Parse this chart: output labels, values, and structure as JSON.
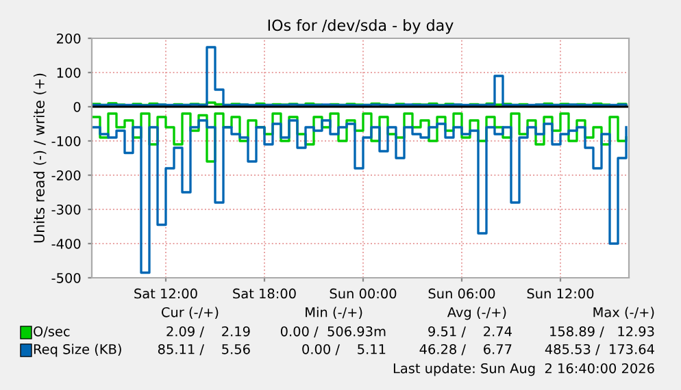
{
  "chart_data": {
    "type": "step",
    "title": "IOs for /dev/sda - by day",
    "ylabel": "Units read (-) / write (+)",
    "x": [
      "2026-08-01T07:30",
      "2026-08-01T08:00",
      "2026-08-01T08:30",
      "2026-08-01T09:00",
      "2026-08-01T09:30",
      "2026-08-01T10:00",
      "2026-08-01T10:30",
      "2026-08-01T11:00",
      "2026-08-01T11:30",
      "2026-08-01T12:00",
      "2026-08-01T12:30",
      "2026-08-01T13:00",
      "2026-08-01T13:30",
      "2026-08-01T14:00",
      "2026-08-01T14:30",
      "2026-08-01T15:00",
      "2026-08-01T15:30",
      "2026-08-01T16:00",
      "2026-08-01T16:30",
      "2026-08-01T17:00",
      "2026-08-01T17:30",
      "2026-08-01T18:00",
      "2026-08-01T18:30",
      "2026-08-01T19:00",
      "2026-08-01T19:30",
      "2026-08-01T20:00",
      "2026-08-01T20:30",
      "2026-08-01T21:00",
      "2026-08-01T21:30",
      "2026-08-01T22:00",
      "2026-08-01T22:30",
      "2026-08-01T23:00",
      "2026-08-01T23:30",
      "2026-08-02T00:00",
      "2026-08-02T00:30",
      "2026-08-02T01:00",
      "2026-08-02T01:30",
      "2026-08-02T02:00",
      "2026-08-02T02:30",
      "2026-08-02T03:00",
      "2026-08-02T03:30",
      "2026-08-02T04:00",
      "2026-08-02T04:30",
      "2026-08-02T05:00",
      "2026-08-02T05:30",
      "2026-08-02T06:00",
      "2026-08-02T06:30",
      "2026-08-02T07:00",
      "2026-08-02T07:30",
      "2026-08-02T08:00",
      "2026-08-02T08:30",
      "2026-08-02T09:00",
      "2026-08-02T09:30",
      "2026-08-02T10:00",
      "2026-08-02T10:30",
      "2026-08-02T11:00",
      "2026-08-02T11:30",
      "2026-08-02T12:00",
      "2026-08-02T12:30",
      "2026-08-02T13:00",
      "2026-08-02T13:30",
      "2026-08-02T14:00",
      "2026-08-02T14:30",
      "2026-08-02T15:00",
      "2026-08-02T15:30",
      "2026-08-02T16:00"
    ],
    "series": [
      {
        "color": "#00cc00",
        "values": [
          -30,
          -90,
          -20,
          -60,
          -40,
          -90,
          -20,
          -110,
          -30,
          -60,
          -110,
          -20,
          -70,
          -25,
          -160,
          -20,
          -60,
          -30,
          -100,
          -40,
          -60,
          -80,
          -20,
          -100,
          -30,
          -80,
          -110,
          -30,
          -60,
          -20,
          -100,
          -40,
          -70,
          -20,
          -100,
          -30,
          -80,
          -90,
          -20,
          -60,
          -40,
          -100,
          -30,
          -70,
          -20,
          -90,
          -40,
          -100,
          -30,
          -60,
          -90,
          -20,
          -80,
          -40,
          -110,
          -30,
          -70,
          -20,
          -100,
          -40,
          -90,
          -60,
          -110,
          -30,
          -100,
          -90
        ]
      },
      {
        "name": "O/sec",
        "color": "#00cc00",
        "values": [
          8,
          5,
          10,
          6,
          4,
          8,
          5,
          9,
          6,
          4,
          7,
          5,
          8,
          6,
          12,
          7,
          5,
          8,
          6,
          4,
          9,
          5,
          7,
          6,
          8,
          5,
          9,
          6,
          4,
          7,
          5,
          8,
          6,
          5,
          9,
          6,
          4,
          8,
          5,
          7,
          6,
          9,
          5,
          8,
          6,
          4,
          7,
          5,
          9,
          6,
          8,
          5,
          7,
          4,
          6,
          9,
          5,
          8,
          6,
          7,
          5,
          9,
          6,
          4,
          8,
          5
        ]
      },
      {
        "color": "#0066b3",
        "values": [
          -60,
          -80,
          -90,
          -70,
          -135,
          -60,
          -485,
          -60,
          -345,
          -180,
          -120,
          -250,
          -60,
          -40,
          -60,
          -280,
          -60,
          -80,
          -90,
          -160,
          -60,
          -110,
          -50,
          -90,
          -40,
          -120,
          -60,
          -70,
          -40,
          -80,
          -60,
          -50,
          -180,
          -90,
          -60,
          -130,
          -60,
          -150,
          -60,
          -80,
          -90,
          -60,
          -50,
          -90,
          -60,
          -80,
          -70,
          -370,
          -60,
          -80,
          -60,
          -280,
          -90,
          -60,
          -80,
          -50,
          -110,
          -80,
          -70,
          -60,
          -120,
          -180,
          -80,
          -400,
          -150,
          -60
        ]
      },
      {
        "name": "Req Size (KB)",
        "color": "#0066b3",
        "values": [
          5,
          5,
          6,
          5,
          5,
          5,
          4,
          5,
          6,
          5,
          5,
          5,
          6,
          5,
          174,
          50,
          5,
          5,
          6,
          5,
          5,
          5,
          4,
          5,
          6,
          5,
          5,
          5,
          6,
          5,
          5,
          5,
          4,
          5,
          6,
          5,
          5,
          5,
          6,
          5,
          5,
          5,
          4,
          5,
          6,
          5,
          5,
          5,
          6,
          90,
          5,
          5,
          4,
          5,
          6,
          5,
          5,
          5,
          6,
          5,
          5,
          5,
          4,
          5,
          6,
          5
        ]
      }
    ],
    "xlim": [
      "2026-08-01T07:30",
      "2026-08-02T16:10"
    ],
    "xticks": [
      {
        "value": "2026-08-01T12:00",
        "label": "Sat 12:00"
      },
      {
        "value": "2026-08-01T18:00",
        "label": "Sat 18:00"
      },
      {
        "value": "2026-08-02T00:00",
        "label": "Sun 00:00"
      },
      {
        "value": "2026-08-02T06:00",
        "label": "Sun 06:00"
      },
      {
        "value": "2026-08-02T12:00",
        "label": "Sun 12:00"
      }
    ],
    "ylim": [
      -500,
      200
    ],
    "yticks": [
      -500,
      -400,
      -300,
      -200,
      -100,
      0,
      100,
      200
    ],
    "ref_lines": [
      {
        "axis": "y",
        "value": 0,
        "color": "#000000"
      }
    ],
    "grid": true,
    "legend": "bottom",
    "annotations": [
      "Cur (-/+)",
      "Min (-/+)",
      "Avg (-/+)",
      "Max (-/+)",
      "2.09 /    2.19",
      "0.00 /  506.93m",
      "9.51 /    2.74",
      "158.89 /   12.93",
      "85.11 /    5.56",
      "0.00 /    5.11",
      "46.28 /    6.77",
      "485.53 /  173.64",
      "Last update: Sun Aug  2 16:40:00 2026"
    ]
  }
}
